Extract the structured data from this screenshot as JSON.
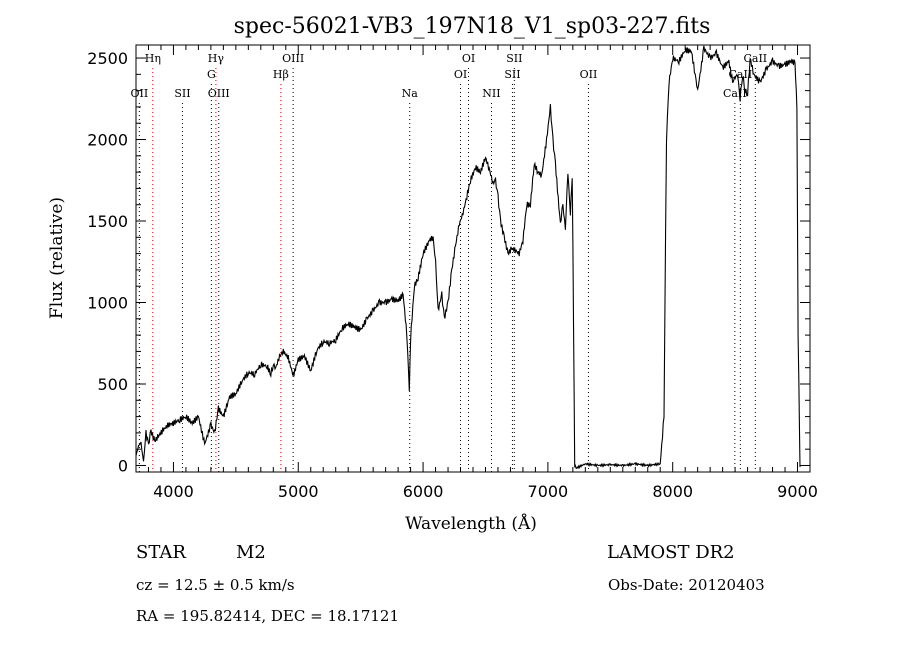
{
  "chart_data": {
    "type": "line",
    "title": "spec-56021-VB3_197N18_V1_sp03-227.fits",
    "xlabel": "Wavelength (Å)",
    "ylabel": "Flux (relative)",
    "xlim": [
      3700,
      9100
    ],
    "ylim": [
      -40,
      2580
    ],
    "xticks": [
      4000,
      5000,
      6000,
      7000,
      8000,
      9000
    ],
    "yticks": [
      0,
      500,
      1000,
      1500,
      2000,
      2500
    ],
    "series": [
      {
        "x": [
          3700,
          3720,
          3740,
          3760,
          3780,
          3800,
          3820,
          3850,
          3880,
          3920,
          3960,
          4000,
          4050,
          4100,
          4150,
          4200,
          4250,
          4300,
          4330,
          4360,
          4400,
          4450,
          4500,
          4550,
          4600,
          4650,
          4700,
          4750,
          4780,
          4800,
          4820,
          4850,
          4880,
          4920,
          4960,
          5000,
          5050,
          5100,
          5150,
          5200,
          5250,
          5300,
          5350,
          5400,
          5450,
          5500,
          5550,
          5600,
          5650,
          5700,
          5750,
          5800,
          5840,
          5870,
          5890,
          5900,
          5930,
          5960,
          6000,
          6050,
          6080,
          6100,
          6120,
          6150,
          6170,
          6200,
          6230,
          6260,
          6290,
          6320,
          6350,
          6380,
          6420,
          6460,
          6500,
          6530,
          6560,
          6580,
          6600,
          6620,
          6650,
          6680,
          6710,
          6740,
          6770,
          6800,
          6830,
          6860,
          6890,
          6920,
          6950,
          6990,
          7020,
          7040,
          7060,
          7100,
          7120,
          7140,
          7160,
          7180,
          7195,
          7205,
          7215,
          7230,
          7300,
          7400,
          7500,
          7600,
          7700,
          7800,
          7850,
          7900,
          7930,
          7950,
          7970,
          8000,
          8050,
          8100,
          8150,
          8180,
          8200,
          8250,
          8300,
          8350,
          8400,
          8450,
          8480,
          8500,
          8520,
          8540,
          8560,
          8580,
          8600,
          8620,
          8650,
          8700,
          8750,
          8800,
          8850,
          8900,
          8950,
          8980,
          8995,
          9005,
          9020
        ],
        "y": [
          60,
          120,
          140,
          20,
          200,
          130,
          210,
          150,
          180,
          220,
          250,
          260,
          280,
          300,
          260,
          300,
          130,
          250,
          200,
          350,
          300,
          420,
          440,
          520,
          570,
          560,
          620,
          610,
          560,
          620,
          600,
          670,
          700,
          660,
          550,
          650,
          670,
          580,
          710,
          760,
          750,
          770,
          840,
          870,
          850,
          830,
          900,
          950,
          1000,
          1000,
          1020,
          1010,
          1050,
          800,
          470,
          780,
          1100,
          1150,
          1300,
          1380,
          1400,
          1250,
          950,
          1050,
          900,
          1000,
          1200,
          1350,
          1480,
          1550,
          1650,
          1750,
          1830,
          1800,
          1890,
          1820,
          1730,
          1750,
          1650,
          1500,
          1400,
          1300,
          1330,
          1320,
          1300,
          1380,
          1600,
          1600,
          1850,
          1800,
          1780,
          2000,
          2200,
          2000,
          1850,
          1480,
          1600,
          1450,
          1800,
          1550,
          1780,
          900,
          0,
          -15,
          10,
          0,
          5,
          0,
          10,
          0,
          5,
          10,
          300,
          2000,
          2350,
          2500,
          2480,
          2550,
          2540,
          2400,
          2300,
          2560,
          2500,
          2530,
          2440,
          2480,
          2350,
          2380,
          2400,
          2250,
          2400,
          2300,
          2280,
          2500,
          2400,
          2350,
          2430,
          2480,
          2450,
          2460,
          2480,
          2470,
          2200,
          800,
          -10
        ]
      }
    ],
    "grid": false,
    "annotations": {
      "lines": [
        {
          "label": "Hη",
          "wave": 3835,
          "row": 0
        },
        {
          "label": "OII",
          "wave": 3727,
          "row": 2
        },
        {
          "label": "SII",
          "wave": 4072,
          "row": 2
        },
        {
          "label": "Hγ",
          "wave": 4340,
          "row": 0
        },
        {
          "label": "G",
          "wave": 4304,
          "row": 1
        },
        {
          "label": "OIII",
          "wave": 4363,
          "row": 2
        },
        {
          "label": "OIII",
          "wave": 4959,
          "row": 0
        },
        {
          "label": "Hβ",
          "wave": 4861,
          "row": 1
        },
        {
          "label": "Na",
          "wave": 5893,
          "row": 2
        },
        {
          "label": "OI",
          "wave": 6364,
          "row": 0
        },
        {
          "label": "OI",
          "wave": 6300,
          "row": 1
        },
        {
          "label": "NII",
          "wave": 6548,
          "row": 2
        },
        {
          "label": "SII",
          "wave": 6731,
          "row": 0
        },
        {
          "label": "SII",
          "wave": 6716,
          "row": 1
        },
        {
          "label": "OII",
          "wave": 7325,
          "row": 1
        },
        {
          "label": "CaII",
          "wave": 8662,
          "row": 0
        },
        {
          "label": "CaII",
          "wave": 8542,
          "row": 1
        },
        {
          "label": "CaII",
          "wave": 8498,
          "row": 2
        }
      ],
      "line_colors": {
        "balmer": "#cc0000",
        "other": "#000000"
      }
    }
  },
  "info": {
    "object_class": "STAR",
    "subclass": "M2",
    "survey": "LAMOST DR2",
    "redshift": "cz = 12.5 ± 0.5 km/s",
    "obs_date": "Obs-Date: 20120403",
    "coords": "RA = 195.82414, DEC =  18.17121"
  }
}
